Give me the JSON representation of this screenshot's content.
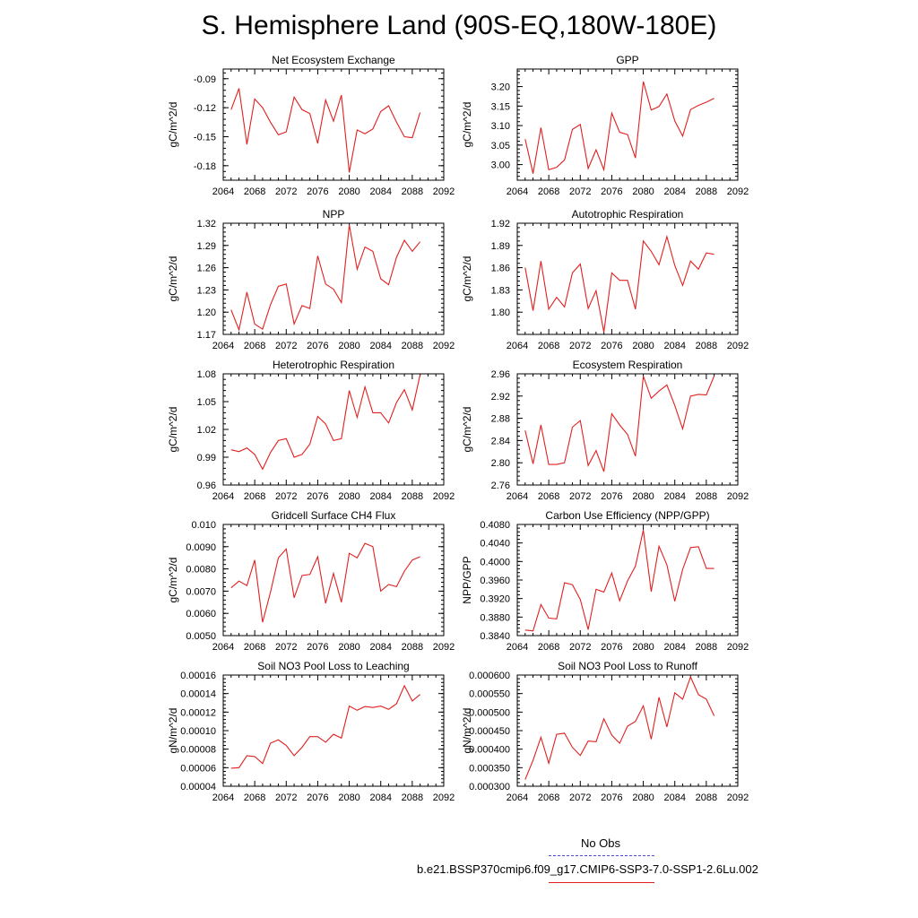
{
  "title": "S. Hemisphere Land (90S-EQ,180W-180E)",
  "legend": {
    "obs_label": "No Obs",
    "case_label": "b.e21.BSSP370cmip6.f09_g17.CMIP6-SSP3-7.0-SSP1-2.6Lu.002",
    "obs_color": "#4a4ad8",
    "case_color": "#e02020"
  },
  "chart_data": [
    {
      "type": "line",
      "title": "Net Ecosystem Exchange",
      "ylabel": "gC/m^2/d",
      "xlim": [
        2064,
        2092
      ],
      "xticks": [
        2064,
        2068,
        2072,
        2076,
        2080,
        2084,
        2088,
        2092
      ],
      "ylim": [
        -0.195,
        -0.08
      ],
      "yticks": [
        -0.09,
        -0.12,
        -0.15,
        -0.18
      ],
      "ytick_labels": [
        "-0.09",
        "-0.12",
        "-0.15",
        "-0.18"
      ],
      "x": [
        2065,
        2066,
        2067,
        2068,
        2069,
        2070,
        2071,
        2072,
        2073,
        2074,
        2075,
        2076,
        2077,
        2078,
        2079,
        2080,
        2081,
        2082,
        2083,
        2084,
        2085,
        2086,
        2087,
        2088,
        2089
      ],
      "series": [
        {
          "color": "#e02020",
          "values": [
            -0.122,
            -0.1,
            -0.158,
            -0.111,
            -0.12,
            -0.135,
            -0.148,
            -0.145,
            -0.109,
            -0.122,
            -0.126,
            -0.157,
            -0.112,
            -0.134,
            -0.107,
            -0.187,
            -0.143,
            -0.147,
            -0.142,
            -0.124,
            -0.118,
            -0.135,
            -0.15,
            -0.151,
            -0.125
          ]
        }
      ]
    },
    {
      "type": "line",
      "title": "GPP",
      "ylabel": "gC/m^2/d",
      "xlim": [
        2064,
        2092
      ],
      "xticks": [
        2064,
        2068,
        2072,
        2076,
        2080,
        2084,
        2088,
        2092
      ],
      "ylim": [
        2.96,
        3.245
      ],
      "yticks": [
        3.0,
        3.05,
        3.1,
        3.15,
        3.2
      ],
      "ytick_labels": [
        "3.00",
        "3.05",
        "3.10",
        "3.15",
        "3.20"
      ],
      "x": [
        2065,
        2066,
        2067,
        2068,
        2069,
        2070,
        2071,
        2072,
        2073,
        2074,
        2075,
        2076,
        2077,
        2078,
        2079,
        2080,
        2081,
        2082,
        2083,
        2084,
        2085,
        2086,
        2087,
        2088,
        2089
      ],
      "series": [
        {
          "color": "#e02020",
          "values": [
            3.065,
            2.977,
            3.095,
            2.987,
            2.993,
            3.012,
            3.09,
            3.103,
            2.99,
            3.038,
            2.987,
            3.132,
            3.083,
            3.077,
            3.017,
            3.213,
            3.14,
            3.149,
            3.181,
            3.112,
            3.073,
            3.141,
            3.152,
            3.16,
            3.17
          ]
        }
      ]
    },
    {
      "type": "line",
      "title": "NPP",
      "ylabel": "gC/m^2/d",
      "xlim": [
        2064,
        2092
      ],
      "xticks": [
        2064,
        2068,
        2072,
        2076,
        2080,
        2084,
        2088,
        2092
      ],
      "ylim": [
        1.17,
        1.32
      ],
      "yticks": [
        1.17,
        1.2,
        1.23,
        1.26,
        1.29,
        1.32
      ],
      "ytick_labels": [
        "1.17",
        "1.20",
        "1.23",
        "1.26",
        "1.29",
        "1.32"
      ],
      "x": [
        2065,
        2066,
        2067,
        2068,
        2069,
        2070,
        2071,
        2072,
        2073,
        2074,
        2075,
        2076,
        2077,
        2078,
        2079,
        2080,
        2081,
        2082,
        2083,
        2084,
        2085,
        2086,
        2087,
        2088,
        2089
      ],
      "series": [
        {
          "color": "#e02020",
          "values": [
            1.203,
            1.176,
            1.227,
            1.184,
            1.177,
            1.21,
            1.235,
            1.238,
            1.184,
            1.209,
            1.205,
            1.276,
            1.238,
            1.231,
            1.213,
            1.318,
            1.258,
            1.288,
            1.282,
            1.245,
            1.237,
            1.274,
            1.297,
            1.282,
            1.295
          ]
        }
      ]
    },
    {
      "type": "line",
      "title": "Autotrophic Respiration",
      "ylabel": "gC/m^2/d",
      "xlim": [
        2064,
        2092
      ],
      "xticks": [
        2064,
        2068,
        2072,
        2076,
        2080,
        2084,
        2088,
        2092
      ],
      "ylim": [
        1.77,
        1.92
      ],
      "yticks": [
        1.8,
        1.83,
        1.86,
        1.89,
        1.92
      ],
      "ytick_labels": [
        "1.80",
        "1.83",
        "1.86",
        "1.89",
        "1.92"
      ],
      "x": [
        2065,
        2066,
        2067,
        2068,
        2069,
        2070,
        2071,
        2072,
        2073,
        2074,
        2075,
        2076,
        2077,
        2078,
        2079,
        2080,
        2081,
        2082,
        2083,
        2084,
        2085,
        2086,
        2087,
        2088,
        2089
      ],
      "series": [
        {
          "color": "#e02020",
          "values": [
            1.86,
            1.802,
            1.869,
            1.804,
            1.82,
            1.807,
            1.853,
            1.865,
            1.805,
            1.829,
            1.773,
            1.853,
            1.843,
            1.843,
            1.804,
            1.896,
            1.882,
            1.864,
            1.902,
            1.863,
            1.836,
            1.869,
            1.858,
            1.88,
            1.878
          ]
        }
      ]
    },
    {
      "type": "line",
      "title": "Heterotrophic Respiration",
      "ylabel": "gC/m^2/d",
      "xlim": [
        2064,
        2092
      ],
      "xticks": [
        2064,
        2068,
        2072,
        2076,
        2080,
        2084,
        2088,
        2092
      ],
      "ylim": [
        0.96,
        1.08
      ],
      "yticks": [
        0.96,
        0.99,
        1.02,
        1.05,
        1.08
      ],
      "ytick_labels": [
        "0.96",
        "0.99",
        "1.02",
        "1.05",
        "1.08"
      ],
      "x": [
        2065,
        2066,
        2067,
        2068,
        2069,
        2070,
        2071,
        2072,
        2073,
        2074,
        2075,
        2076,
        2077,
        2078,
        2079,
        2080,
        2081,
        2082,
        2083,
        2084,
        2085,
        2086,
        2087,
        2088,
        2089
      ],
      "series": [
        {
          "color": "#e02020",
          "values": [
            0.998,
            0.996,
            1.0,
            0.993,
            0.977,
            0.995,
            1.008,
            1.01,
            0.99,
            0.993,
            1.004,
            1.034,
            1.026,
            1.008,
            1.01,
            1.062,
            1.033,
            1.066,
            1.038,
            1.038,
            1.027,
            1.049,
            1.063,
            1.041,
            1.079
          ]
        }
      ]
    },
    {
      "type": "line",
      "title": "Ecosystem Respiration",
      "ylabel": "gC/m^2/d",
      "xlim": [
        2064,
        2092
      ],
      "xticks": [
        2064,
        2068,
        2072,
        2076,
        2080,
        2084,
        2088,
        2092
      ],
      "ylim": [
        2.76,
        2.96
      ],
      "yticks": [
        2.76,
        2.8,
        2.84,
        2.88,
        2.92,
        2.96
      ],
      "ytick_labels": [
        "2.76",
        "2.80",
        "2.84",
        "2.88",
        "2.92",
        "2.96"
      ],
      "x": [
        2065,
        2066,
        2067,
        2068,
        2069,
        2070,
        2071,
        2072,
        2073,
        2074,
        2075,
        2076,
        2077,
        2078,
        2079,
        2080,
        2081,
        2082,
        2083,
        2084,
        2085,
        2086,
        2087,
        2088,
        2089
      ],
      "series": [
        {
          "color": "#e02020",
          "values": [
            2.858,
            2.798,
            2.868,
            2.797,
            2.797,
            2.8,
            2.864,
            2.876,
            2.795,
            2.822,
            2.784,
            2.888,
            2.868,
            2.851,
            2.812,
            2.956,
            2.916,
            2.929,
            2.94,
            2.903,
            2.861,
            2.92,
            2.923,
            2.922,
            2.956
          ]
        }
      ]
    },
    {
      "type": "line",
      "title": "Gridcell Surface CH4 Flux",
      "ylabel": "gC/m^2/d",
      "xlim": [
        2064,
        2092
      ],
      "xticks": [
        2064,
        2068,
        2072,
        2076,
        2080,
        2084,
        2088,
        2092
      ],
      "ylim": [
        0.005,
        0.01
      ],
      "yticks": [
        0.005,
        0.006,
        0.007,
        0.008,
        0.009,
        0.01
      ],
      "ytick_labels": [
        "0.0050",
        "0.0060",
        "0.0070",
        "0.0080",
        "0.0090",
        "0.010"
      ],
      "x": [
        2065,
        2066,
        2067,
        2068,
        2069,
        2070,
        2071,
        2072,
        2073,
        2074,
        2075,
        2076,
        2077,
        2078,
        2079,
        2080,
        2081,
        2082,
        2083,
        2084,
        2085,
        2086,
        2087,
        2088,
        2089
      ],
      "series": [
        {
          "color": "#e02020",
          "values": [
            0.00715,
            0.00745,
            0.00725,
            0.0084,
            0.0056,
            0.00695,
            0.0085,
            0.0089,
            0.0067,
            0.0077,
            0.00775,
            0.00855,
            0.00645,
            0.0078,
            0.0065,
            0.0087,
            0.0085,
            0.00915,
            0.009,
            0.007,
            0.0073,
            0.0072,
            0.0079,
            0.0084,
            0.00855
          ]
        }
      ]
    },
    {
      "type": "line",
      "title": "Carbon Use Efficiency (NPP/GPP)",
      "ylabel": "NPP/GPP",
      "xlim": [
        2064,
        2092
      ],
      "xticks": [
        2064,
        2068,
        2072,
        2076,
        2080,
        2084,
        2088,
        2092
      ],
      "ylim": [
        0.384,
        0.408
      ],
      "yticks": [
        0.384,
        0.388,
        0.392,
        0.396,
        0.4,
        0.404,
        0.408
      ],
      "ytick_labels": [
        "0.3840",
        "0.3880",
        "0.3920",
        "0.3960",
        "0.4000",
        "0.4040",
        "0.4080"
      ],
      "x": [
        2065,
        2066,
        2067,
        2068,
        2069,
        2070,
        2071,
        2072,
        2073,
        2074,
        2075,
        2076,
        2077,
        2078,
        2079,
        2080,
        2081,
        2082,
        2083,
        2084,
        2085,
        2086,
        2087,
        2088,
        2089
      ],
      "series": [
        {
          "color": "#e02020",
          "values": [
            0.3852,
            0.385,
            0.3907,
            0.3878,
            0.3876,
            0.3954,
            0.395,
            0.3918,
            0.3853,
            0.394,
            0.3934,
            0.3975,
            0.3915,
            0.3958,
            0.399,
            0.4068,
            0.3935,
            0.4033,
            0.3993,
            0.3914,
            0.3983,
            0.403,
            0.4032,
            0.3985,
            0.3985
          ]
        }
      ]
    },
    {
      "type": "line",
      "title": "Soil NO3 Pool Loss to Leaching",
      "ylabel": "gN/m^2/d",
      "xlim": [
        2064,
        2092
      ],
      "xticks": [
        2064,
        2068,
        2072,
        2076,
        2080,
        2084,
        2088,
        2092
      ],
      "ylim": [
        4e-05,
        0.00016
      ],
      "yticks": [
        4e-05,
        6e-05,
        8e-05,
        0.0001,
        0.00012,
        0.00014,
        0.00016
      ],
      "ytick_labels": [
        "0.00004",
        "0.00006",
        "0.00008",
        "0.00010",
        "0.00012",
        "0.00014",
        "0.00016"
      ],
      "x": [
        2065,
        2066,
        2067,
        2068,
        2069,
        2070,
        2071,
        2072,
        2073,
        2074,
        2075,
        2076,
        2077,
        2078,
        2079,
        2080,
        2081,
        2082,
        2083,
        2084,
        2085,
        2086,
        2087,
        2088,
        2089
      ],
      "series": [
        {
          "color": "#e02020",
          "values": [
            5.95e-05,
            6e-05,
            7.3e-05,
            7.2e-05,
            6.45e-05,
            8.65e-05,
            9e-05,
            8.4e-05,
            7.3e-05,
            8.2e-05,
            9.35e-05,
            9.35e-05,
            8.75e-05,
            9.6e-05,
            9.2e-05,
            0.0001265,
            0.000122,
            0.000126,
            0.000125,
            0.0001265,
            0.000123,
            0.000129,
            0.0001485,
            0.000132,
            0.000139
          ]
        }
      ]
    },
    {
      "type": "line",
      "title": "Soil NO3 Pool Loss to Runoff",
      "ylabel": "gN/m^2/d",
      "xlim": [
        2064,
        2092
      ],
      "xticks": [
        2064,
        2068,
        2072,
        2076,
        2080,
        2084,
        2088,
        2092
      ],
      "ylim": [
        0.0003,
        0.0006
      ],
      "yticks": [
        0.0003,
        0.00035,
        0.0004,
        0.00045,
        0.0005,
        0.00055,
        0.0006
      ],
      "ytick_labels": [
        "0.000300",
        "0.000350",
        "0.000400",
        "0.000450",
        "0.000500",
        "0.000550",
        "0.000600"
      ],
      "x": [
        2065,
        2066,
        2067,
        2068,
        2069,
        2070,
        2071,
        2072,
        2073,
        2074,
        2075,
        2076,
        2077,
        2078,
        2079,
        2080,
        2081,
        2082,
        2083,
        2084,
        2085,
        2086,
        2087,
        2088,
        2089
      ],
      "series": [
        {
          "color": "#e02020",
          "values": [
            0.000318,
            0.00037,
            0.000432,
            0.000362,
            0.00044,
            0.000443,
            0.000405,
            0.000383,
            0.000422,
            0.00042,
            0.000482,
            0.000438,
            0.000416,
            0.000462,
            0.000475,
            0.000517,
            0.000427,
            0.00054,
            0.00046,
            0.000552,
            0.000535,
            0.000595,
            0.000547,
            0.000535,
            0.00049
          ]
        }
      ]
    }
  ]
}
